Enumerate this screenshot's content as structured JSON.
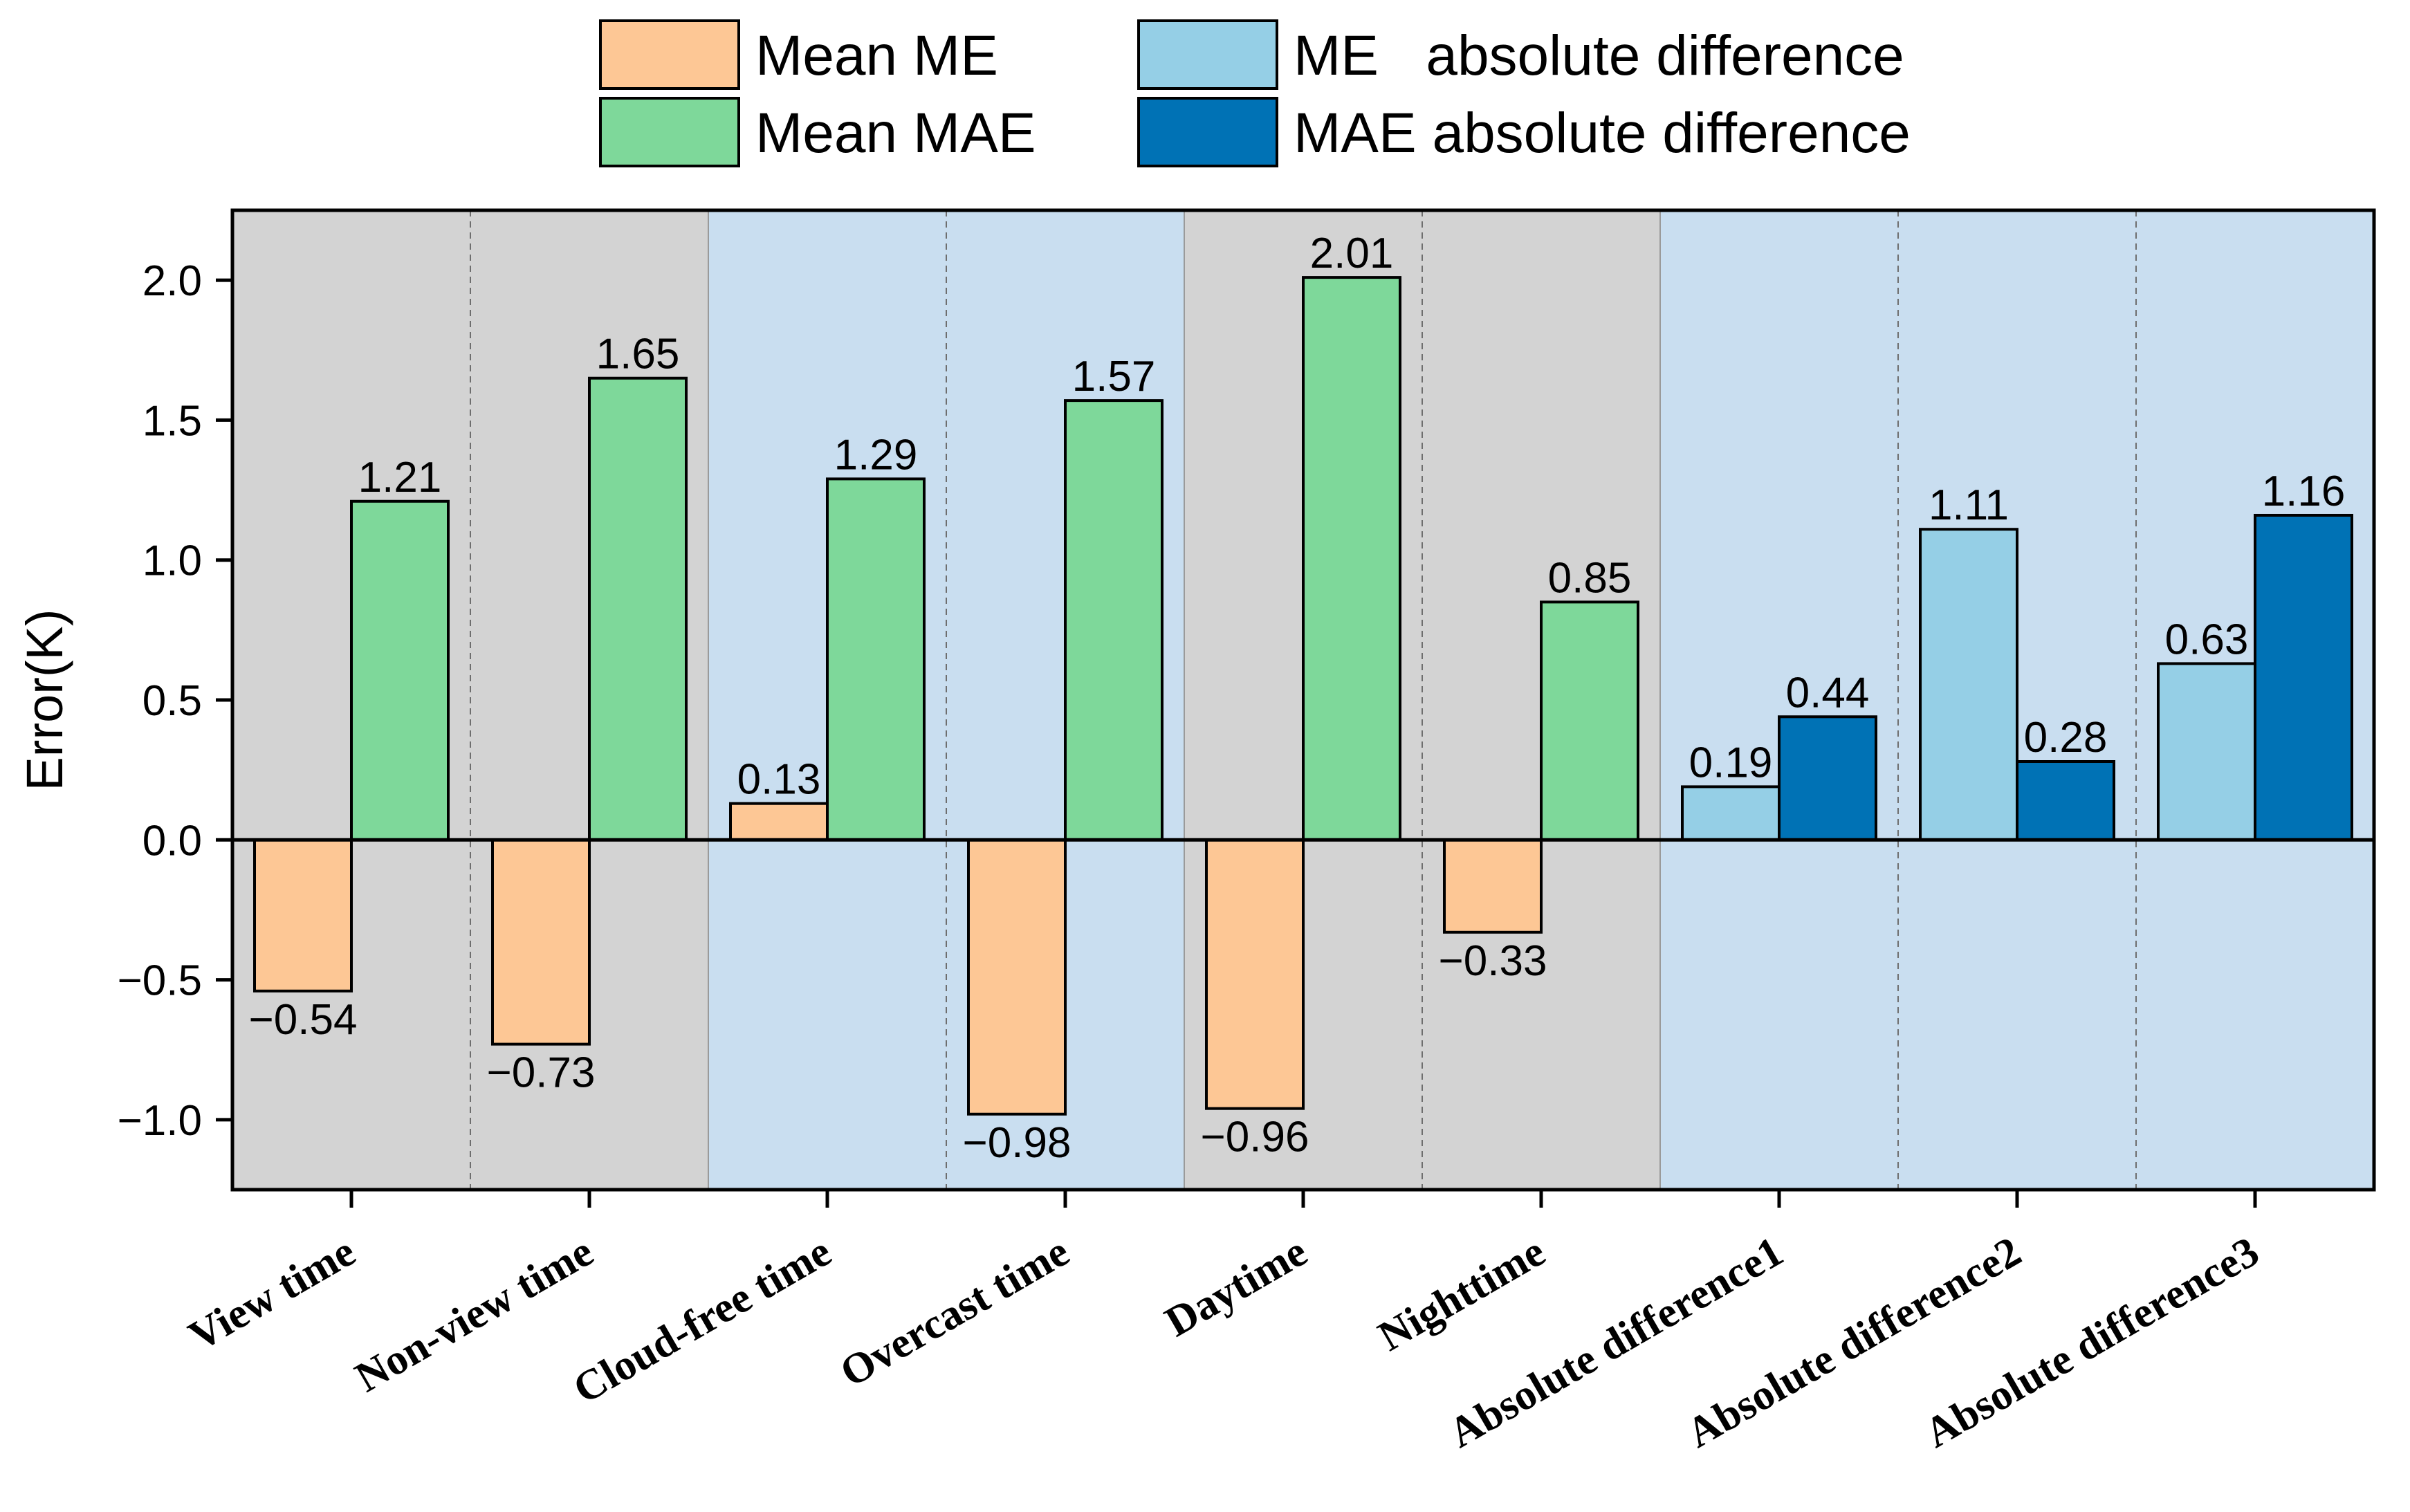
{
  "chart_data": {
    "type": "bar",
    "title": "",
    "xlabel": "",
    "ylabel": "Error(K)",
    "ylim": [
      -1.25,
      2.25
    ],
    "yticks": [
      -1.0,
      -0.5,
      0.0,
      0.5,
      1.0,
      1.5,
      2.0
    ],
    "ytick_labels": [
      "−1.0",
      "−0.5",
      "0.0",
      "0.5",
      "1.0",
      "1.5",
      "2.0"
    ],
    "grid": false,
    "legend_position": "top-center",
    "categories": [
      "View time",
      "Non-view time",
      "Cloud-free time",
      "Overcast time",
      "Daytime",
      "Nighttime",
      "Absolute difference1",
      "Absolute difference2",
      "Absolute difference3"
    ],
    "legend": [
      {
        "name": "Mean ME",
        "color": "#FDC795"
      },
      {
        "name": "Mean MAE",
        "color": "#7ED89A"
      },
      {
        "name": "ME   absolute difference",
        "color": "#95CFE6"
      },
      {
        "name": "MAE absolute difference",
        "color": "#0072B5"
      }
    ],
    "background_bands": [
      {
        "from": 0,
        "to": 1,
        "color": "#D3D3D3"
      },
      {
        "from": 2,
        "to": 3,
        "color": "#C9DEF0"
      },
      {
        "from": 4,
        "to": 5,
        "color": "#D3D3D3"
      },
      {
        "from": 6,
        "to": 8,
        "color": "#C9DEF0"
      }
    ],
    "bars": [
      {
        "category": 0,
        "slot": 0,
        "value": -0.54,
        "label": "−0.54",
        "color": "#FDC795"
      },
      {
        "category": 0,
        "slot": 1,
        "value": 1.21,
        "label": "1.21",
        "color": "#7ED89A"
      },
      {
        "category": 1,
        "slot": 0,
        "value": -0.73,
        "label": "−0.73",
        "color": "#FDC795"
      },
      {
        "category": 1,
        "slot": 1,
        "value": 1.65,
        "label": "1.65",
        "color": "#7ED89A"
      },
      {
        "category": 2,
        "slot": 0,
        "value": 0.13,
        "label": "0.13",
        "color": "#FDC795"
      },
      {
        "category": 2,
        "slot": 1,
        "value": 1.29,
        "label": "1.29",
        "color": "#7ED89A"
      },
      {
        "category": 3,
        "slot": 0,
        "value": -0.98,
        "label": "−0.98",
        "color": "#FDC795"
      },
      {
        "category": 3,
        "slot": 1,
        "value": 1.57,
        "label": "1.57",
        "color": "#7ED89A"
      },
      {
        "category": 4,
        "slot": 0,
        "value": -0.96,
        "label": "−0.96",
        "color": "#FDC795"
      },
      {
        "category": 4,
        "slot": 1,
        "value": 2.01,
        "label": "2.01",
        "color": "#7ED89A"
      },
      {
        "category": 5,
        "slot": 0,
        "value": -0.33,
        "label": "−0.33",
        "color": "#FDC795"
      },
      {
        "category": 5,
        "slot": 1,
        "value": 0.85,
        "label": "0.85",
        "color": "#7ED89A"
      },
      {
        "category": 6,
        "slot": 0,
        "value": 0.19,
        "label": "0.19",
        "color": "#95CFE6"
      },
      {
        "category": 6,
        "slot": 1,
        "value": 0.44,
        "label": "0.44",
        "color": "#0072B5"
      },
      {
        "category": 7,
        "slot": 0,
        "value": 1.11,
        "label": "1.11",
        "color": "#95CFE6"
      },
      {
        "category": 7,
        "slot": 1,
        "value": 0.28,
        "label": "0.28",
        "color": "#0072B5"
      },
      {
        "category": 8,
        "slot": 0,
        "value": 0.63,
        "label": "0.63",
        "color": "#95CFE6"
      },
      {
        "category": 8,
        "slot": 1,
        "value": 1.16,
        "label": "1.16",
        "color": "#0072B5"
      }
    ]
  }
}
